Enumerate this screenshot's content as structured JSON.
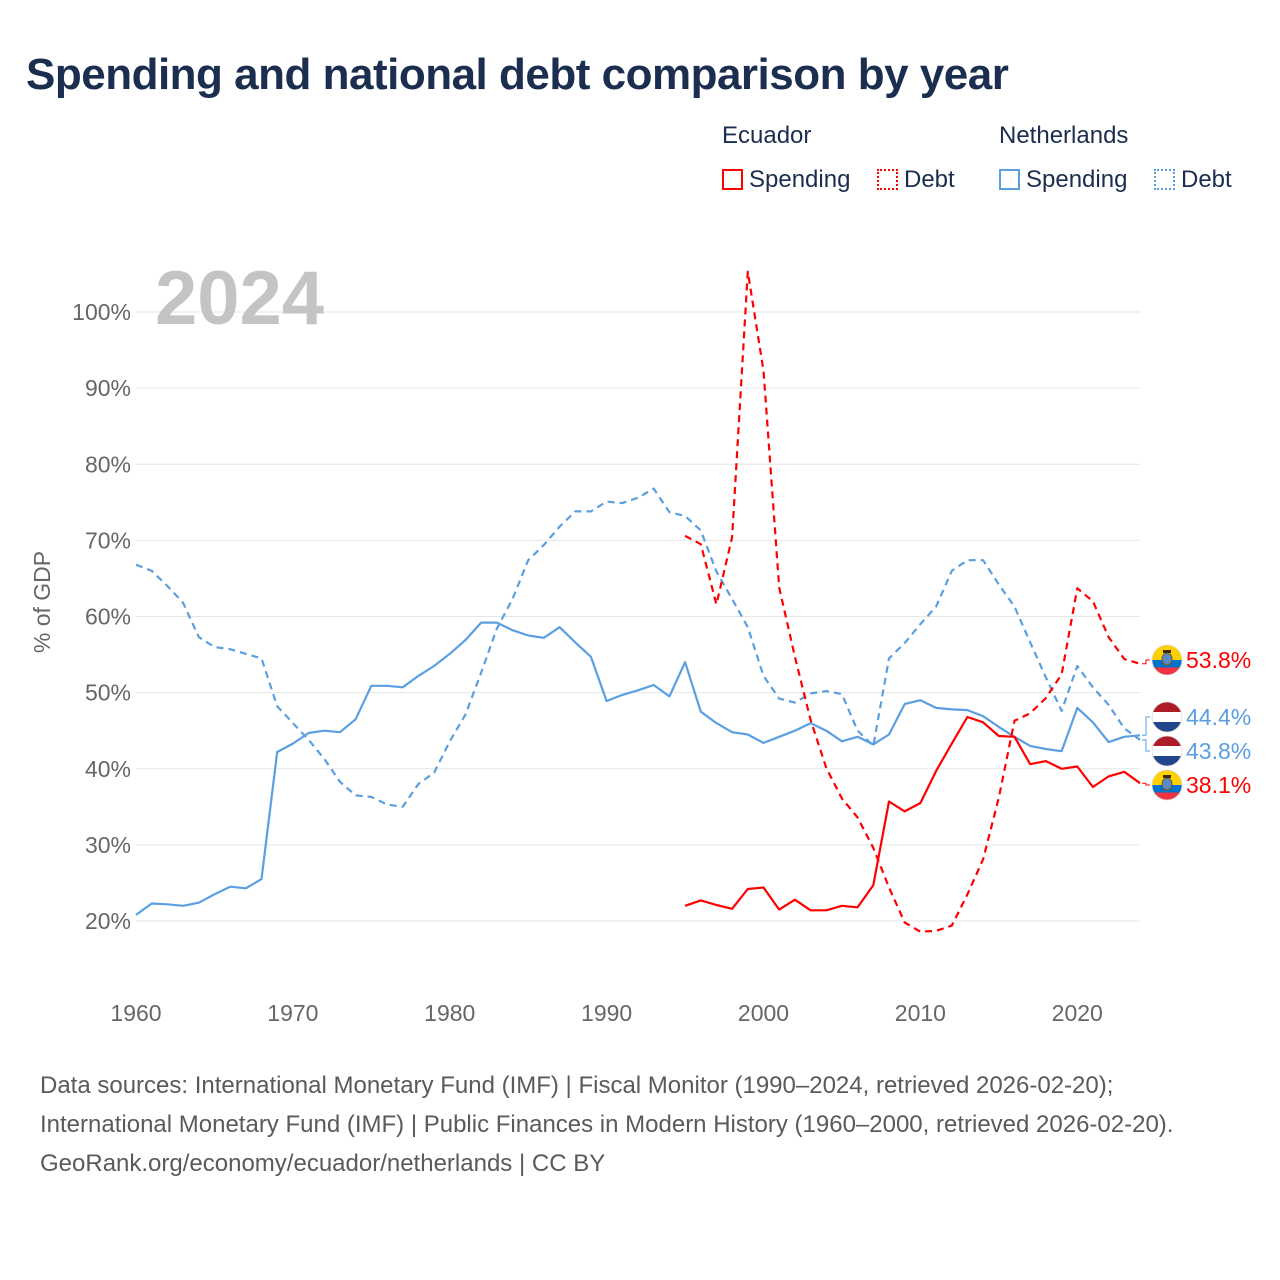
{
  "title": "Spending and national debt comparison by year",
  "legend": {
    "groups": [
      {
        "country": "Ecuador",
        "items": [
          "Spending",
          "Debt"
        ]
      },
      {
        "country": "Netherlands",
        "items": [
          "Spending",
          "Debt"
        ]
      }
    ]
  },
  "colors": {
    "ecuador": "#ff0000",
    "netherlands": "#5b9fe0",
    "year": "#c4c4c4"
  },
  "footer": {
    "sources": "Data sources: International Monetary Fund (IMF) | Fiscal Monitor (1990–2024, retrieved 2026-02-20); International Monetary Fund (IMF) | Public Finances in Modern History (1960–2000, retrieved 2026-02-20).",
    "credit": "GeoRank.org/economy/ecuador/netherlands | CC BY"
  },
  "chart_data": {
    "type": "line",
    "year_label": "2024",
    "ylabel": "% of GDP",
    "xlim": [
      1960,
      2024
    ],
    "ylim": [
      20,
      100
    ],
    "x_ticks": [
      "1960",
      "1970",
      "1980",
      "1990",
      "2000",
      "2010",
      "2020"
    ],
    "y_ticks": [
      "20%",
      "30%",
      "40%",
      "50%",
      "60%",
      "70%",
      "80%",
      "90%",
      "100%"
    ],
    "series": [
      {
        "name": "Netherlands Spending",
        "country": "netherlands",
        "style": "solid",
        "x": [
          1960,
          1961,
          1962,
          1963,
          1964,
          1965,
          1966,
          1967,
          1968,
          1969,
          1970,
          1971,
          1972,
          1973,
          1974,
          1975,
          1976,
          1977,
          1978,
          1979,
          1980,
          1981,
          1982,
          1983,
          1984,
          1985,
          1986,
          1987,
          1988,
          1989,
          1990,
          1991,
          1992,
          1993,
          1994,
          1995,
          1996,
          1997,
          1998,
          1999,
          2000,
          2001,
          2002,
          2003,
          2004,
          2005,
          2006,
          2007,
          2008,
          2009,
          2010,
          2011,
          2012,
          2013,
          2014,
          2015,
          2016,
          2017,
          2018,
          2019,
          2020,
          2021,
          2022,
          2023,
          2024
        ],
        "values": [
          20.8,
          22.3,
          22.2,
          22.0,
          22.4,
          23.5,
          24.5,
          24.3,
          25.5,
          42.2,
          43.3,
          44.7,
          45.0,
          44.8,
          46.5,
          50.9,
          50.9,
          50.7,
          52.2,
          53.5,
          55.1,
          56.9,
          59.2,
          59.2,
          58.2,
          57.5,
          57.2,
          58.6,
          56.6,
          54.7,
          48.9,
          49.7,
          50.3,
          51.0,
          49.5,
          54.0,
          47.5,
          46.0,
          44.8,
          44.5,
          43.4,
          44.2,
          45.0,
          46.0,
          45.0,
          43.6,
          44.2,
          43.2,
          44.5,
          48.5,
          49.0,
          48.0,
          47.8,
          47.7,
          46.9,
          45.5,
          44.2,
          43.0,
          42.6,
          42.3,
          48.0,
          46.1,
          43.5,
          44.2,
          44.4
        ]
      },
      {
        "name": "Netherlands Debt",
        "country": "netherlands",
        "style": "dashed",
        "x": [
          1960,
          1961,
          1962,
          1963,
          1964,
          1965,
          1966,
          1967,
          1968,
          1969,
          1970,
          1971,
          1972,
          1973,
          1974,
          1975,
          1976,
          1977,
          1978,
          1979,
          1980,
          1981,
          1982,
          1983,
          1984,
          1985,
          1986,
          1987,
          1988,
          1989,
          1990,
          1991,
          1992,
          1993,
          1994,
          1995,
          1996,
          1997,
          1998,
          1999,
          2000,
          2001,
          2002,
          2003,
          2004,
          2005,
          2006,
          2007,
          2008,
          2009,
          2010,
          2011,
          2012,
          2013,
          2014,
          2015,
          2016,
          2017,
          2018,
          2019,
          2020,
          2021,
          2022,
          2023,
          2024
        ],
        "values": [
          66.8,
          66.0,
          64.0,
          61.8,
          57.3,
          56.0,
          55.7,
          55.1,
          54.5,
          48.2,
          46.0,
          43.8,
          41.3,
          38.3,
          36.5,
          36.3,
          35.3,
          35.0,
          38.0,
          39.5,
          43.6,
          47.1,
          52.6,
          58.4,
          62.3,
          67.4,
          69.4,
          71.8,
          73.8,
          73.8,
          75.1,
          74.9,
          75.6,
          76.8,
          73.7,
          73.2,
          71.3,
          65.9,
          62.3,
          58.6,
          52.2,
          49.2,
          48.7,
          49.9,
          50.2,
          49.8,
          45.0,
          43.0,
          54.5,
          56.5,
          59.0,
          61.3,
          66.0,
          67.4,
          67.4,
          64.2,
          61.3,
          56.6,
          52.0,
          47.6,
          53.5,
          50.7,
          48.4,
          45.3,
          43.8
        ]
      },
      {
        "name": "Ecuador Spending",
        "country": "ecuador",
        "style": "solid",
        "x": [
          1995,
          1996,
          1997,
          1998,
          1999,
          2000,
          2001,
          2002,
          2003,
          2004,
          2005,
          2006,
          2007,
          2008,
          2009,
          2010,
          2011,
          2012,
          2013,
          2014,
          2015,
          2016,
          2017,
          2018,
          2019,
          2020,
          2021,
          2022,
          2023,
          2024
        ],
        "values": [
          22.0,
          22.7,
          22.1,
          21.6,
          24.2,
          24.4,
          21.5,
          22.8,
          21.4,
          21.4,
          22.0,
          21.8,
          24.7,
          35.7,
          34.4,
          35.5,
          39.7,
          43.3,
          46.8,
          46.1,
          44.3,
          44.2,
          40.6,
          41.0,
          40.0,
          40.3,
          37.6,
          39.0,
          39.6,
          38.1
        ]
      },
      {
        "name": "Ecuador Debt",
        "country": "ecuador",
        "style": "dashed",
        "x": [
          1995,
          1996,
          1997,
          1998,
          1999,
          2000,
          2001,
          2002,
          2003,
          2004,
          2005,
          2006,
          2007,
          2008,
          2009,
          2010,
          2011,
          2012,
          2013,
          2014,
          2015,
          2016,
          2017,
          2018,
          2019,
          2020,
          2021,
          2022,
          2023,
          2024
        ],
        "values": [
          70.6,
          69.5,
          61.6,
          70.4,
          105.3,
          92.3,
          63.8,
          54.7,
          46.4,
          40.1,
          36.1,
          33.6,
          29.6,
          24.4,
          19.8,
          18.6,
          18.7,
          19.4,
          23.5,
          28.1,
          36.2,
          46.3,
          47.3,
          49.3,
          52.4,
          63.7,
          62.0,
          57.3,
          54.4,
          53.8
        ]
      }
    ],
    "end_labels": [
      {
        "country": "ecuador",
        "flag": "ecuador",
        "text": "53.8%",
        "value": 53.8
      },
      {
        "country": "netherlands",
        "flag": "netherlands",
        "text": "44.4%",
        "value": 44.4
      },
      {
        "country": "netherlands",
        "flag": "netherlands",
        "text": "43.8%",
        "value": 43.8
      },
      {
        "country": "ecuador",
        "flag": "ecuador",
        "text": "38.1%",
        "value": 38.1
      }
    ]
  }
}
